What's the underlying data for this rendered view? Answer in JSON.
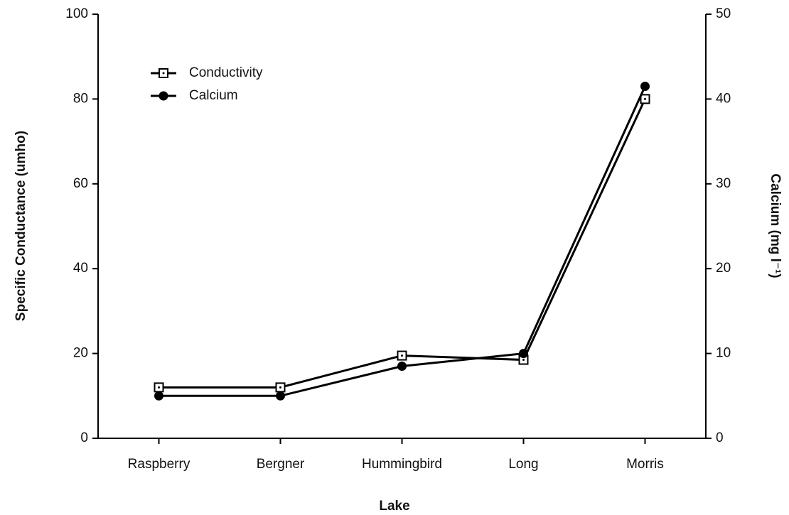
{
  "chart_data": {
    "type": "line",
    "x_label": "Lake",
    "y_label": "Specific Conductance (umho)",
    "y2_label": "Calcium (mg l⁻¹)",
    "categories": [
      "Raspberry",
      "Bergner",
      "Hummingbird",
      "Long",
      "Morris"
    ],
    "series": [
      {
        "name": "Conductivity",
        "color": "#000000",
        "marker": "square",
        "values": [
          12,
          12,
          19.5,
          18.5,
          80
        ]
      },
      {
        "name": "Calcium",
        "color": "#000000",
        "marker": "circle",
        "axis": "y2",
        "values": [
          5,
          5,
          8.5,
          10,
          41.5
        ]
      }
    ],
    "ylim": [
      0,
      100
    ],
    "yticks": [
      0,
      20,
      40,
      60,
      80,
      100
    ],
    "y2lim": [
      0,
      50
    ],
    "y2ticks": [
      0,
      10,
      20,
      30,
      40,
      50
    ],
    "grid": false,
    "legend": "upper left"
  }
}
